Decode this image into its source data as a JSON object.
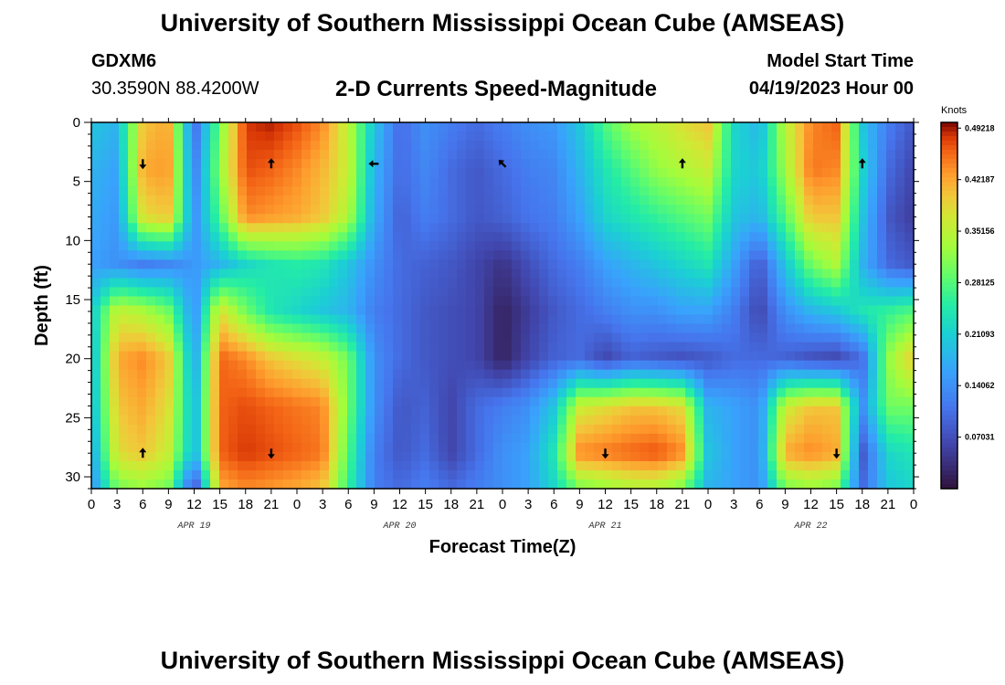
{
  "header": {
    "title": "University of Southern Mississippi Ocean Cube (AMSEAS)",
    "station_id": "GDXM6",
    "coordinates": "30.3590N  88.4200W",
    "plot_title": "2-D Currents Speed-Magnitude",
    "start_label": "Model Start Time",
    "start_value": "04/19/2023 Hour 00"
  },
  "footer": {
    "title": "University of Southern Mississippi Ocean Cube (AMSEAS)"
  },
  "chart_data": {
    "type": "heatmap",
    "title": "2-D Currents Speed-Magnitude",
    "xlabel": "Forecast Time(Z)",
    "ylabel": "Depth (ft)",
    "x_ticks": [
      "0",
      "3",
      "6",
      "9",
      "12",
      "15",
      "18",
      "21",
      "0",
      "3",
      "6",
      "9",
      "12",
      "15",
      "18",
      "21",
      "0",
      "3",
      "6",
      "9",
      "12",
      "15",
      "18",
      "21",
      "0",
      "3",
      "6",
      "9",
      "12",
      "15",
      "18",
      "21",
      "0"
    ],
    "date_labels": [
      {
        "label": "APR 19",
        "hour": 12
      },
      {
        "label": "APR 20",
        "hour": 36
      },
      {
        "label": "APR 21",
        "hour": 60
      },
      {
        "label": "APR 22",
        "hour": 84
      }
    ],
    "x_range_hours": [
      0,
      96
    ],
    "y_range_ft": [
      0,
      31
    ],
    "y_ticks": [
      0,
      5,
      10,
      15,
      20,
      25,
      30
    ],
    "depth_levels_ft": [
      0,
      4,
      8,
      12,
      16,
      20,
      24,
      28,
      31
    ],
    "time_columns_hours": [
      0,
      3,
      6,
      9,
      12,
      15,
      18,
      21,
      24,
      27,
      30,
      33,
      36,
      39,
      42,
      45,
      48,
      51,
      54,
      57,
      60,
      63,
      66,
      69,
      72,
      75,
      78,
      81,
      84,
      87,
      90,
      93,
      96
    ],
    "speed_knots": [
      [
        0.2,
        0.18,
        0.4,
        0.42,
        0.1,
        0.3,
        0.48,
        0.49,
        0.47,
        0.44,
        0.35,
        0.2,
        0.1,
        0.14,
        0.12,
        0.1,
        0.12,
        0.14,
        0.15,
        0.2,
        0.28,
        0.33,
        0.35,
        0.38,
        0.4,
        0.22,
        0.18,
        0.35,
        0.44,
        0.46,
        0.2,
        0.12,
        0.08
      ],
      [
        0.18,
        0.16,
        0.42,
        0.43,
        0.12,
        0.32,
        0.47,
        0.46,
        0.44,
        0.41,
        0.36,
        0.18,
        0.1,
        0.13,
        0.1,
        0.08,
        0.1,
        0.12,
        0.13,
        0.18,
        0.24,
        0.28,
        0.32,
        0.34,
        0.36,
        0.22,
        0.2,
        0.33,
        0.45,
        0.44,
        0.22,
        0.1,
        0.06
      ],
      [
        0.17,
        0.15,
        0.38,
        0.4,
        0.14,
        0.28,
        0.44,
        0.43,
        0.42,
        0.4,
        0.34,
        0.17,
        0.09,
        0.12,
        0.1,
        0.08,
        0.09,
        0.11,
        0.12,
        0.16,
        0.22,
        0.24,
        0.26,
        0.28,
        0.3,
        0.2,
        0.18,
        0.28,
        0.4,
        0.4,
        0.2,
        0.08,
        0.05
      ],
      [
        0.16,
        0.14,
        0.12,
        0.13,
        0.15,
        0.18,
        0.22,
        0.24,
        0.25,
        0.24,
        0.2,
        0.14,
        0.1,
        0.09,
        0.08,
        0.06,
        0.04,
        0.07,
        0.1,
        0.12,
        0.16,
        0.18,
        0.2,
        0.22,
        0.24,
        0.16,
        0.08,
        0.2,
        0.3,
        0.34,
        0.18,
        0.1,
        0.08
      ],
      [
        0.2,
        0.36,
        0.34,
        0.3,
        0.14,
        0.38,
        0.3,
        0.24,
        0.22,
        0.2,
        0.18,
        0.12,
        0.1,
        0.08,
        0.07,
        0.06,
        0.02,
        0.05,
        0.08,
        0.1,
        0.12,
        0.14,
        0.14,
        0.16,
        0.16,
        0.12,
        0.06,
        0.14,
        0.18,
        0.2,
        0.24,
        0.26,
        0.28
      ],
      [
        0.18,
        0.42,
        0.44,
        0.4,
        0.16,
        0.46,
        0.44,
        0.4,
        0.38,
        0.36,
        0.3,
        0.14,
        0.1,
        0.08,
        0.07,
        0.06,
        0.02,
        0.06,
        0.09,
        0.1,
        0.06,
        0.09,
        0.08,
        0.07,
        0.08,
        0.1,
        0.1,
        0.09,
        0.07,
        0.06,
        0.1,
        0.32,
        0.4
      ],
      [
        0.18,
        0.4,
        0.42,
        0.38,
        0.18,
        0.46,
        0.47,
        0.46,
        0.45,
        0.44,
        0.3,
        0.14,
        0.08,
        0.09,
        0.06,
        0.1,
        0.12,
        0.14,
        0.2,
        0.36,
        0.38,
        0.4,
        0.4,
        0.38,
        0.18,
        0.16,
        0.14,
        0.36,
        0.4,
        0.4,
        0.14,
        0.3,
        0.3
      ],
      [
        0.16,
        0.38,
        0.4,
        0.36,
        0.18,
        0.46,
        0.48,
        0.47,
        0.46,
        0.45,
        0.28,
        0.12,
        0.08,
        0.1,
        0.06,
        0.1,
        0.14,
        0.16,
        0.24,
        0.44,
        0.45,
        0.46,
        0.47,
        0.44,
        0.2,
        0.16,
        0.14,
        0.42,
        0.44,
        0.42,
        0.08,
        0.22,
        0.24
      ],
      [
        0.14,
        0.3,
        0.32,
        0.3,
        0.06,
        0.42,
        0.44,
        0.43,
        0.42,
        0.4,
        0.26,
        0.12,
        0.1,
        0.12,
        0.1,
        0.12,
        0.14,
        0.16,
        0.22,
        0.3,
        0.32,
        0.34,
        0.34,
        0.3,
        0.18,
        0.16,
        0.14,
        0.3,
        0.32,
        0.3,
        0.1,
        0.2,
        0.22
      ]
    ],
    "vector_arrows": [
      {
        "hour": 6,
        "depth_ft": 3.5,
        "dir": "S"
      },
      {
        "hour": 21,
        "depth_ft": 3.5,
        "dir": "N"
      },
      {
        "hour": 33,
        "depth_ft": 3.5,
        "dir": "W"
      },
      {
        "hour": 48,
        "depth_ft": 3.5,
        "dir": "NW"
      },
      {
        "hour": 69,
        "depth_ft": 3.5,
        "dir": "N"
      },
      {
        "hour": 90,
        "depth_ft": 3.5,
        "dir": "N"
      },
      {
        "hour": 6,
        "depth_ft": 28,
        "dir": "N"
      },
      {
        "hour": 21,
        "depth_ft": 28,
        "dir": "S"
      },
      {
        "hour": 60,
        "depth_ft": 28,
        "dir": "S"
      },
      {
        "hour": 87,
        "depth_ft": 28,
        "dir": "S"
      }
    ],
    "colorbar": {
      "title": "Knots",
      "labels": [
        "0.49218",
        "0.42187",
        "0.35156",
        "0.28125",
        "0.21093",
        "0.14062",
        "0.07031"
      ],
      "values": [
        0.49218,
        0.42187,
        0.35156,
        0.28125,
        0.21093,
        0.14062,
        0.07031
      ],
      "range": [
        0.0,
        0.5
      ]
    }
  }
}
